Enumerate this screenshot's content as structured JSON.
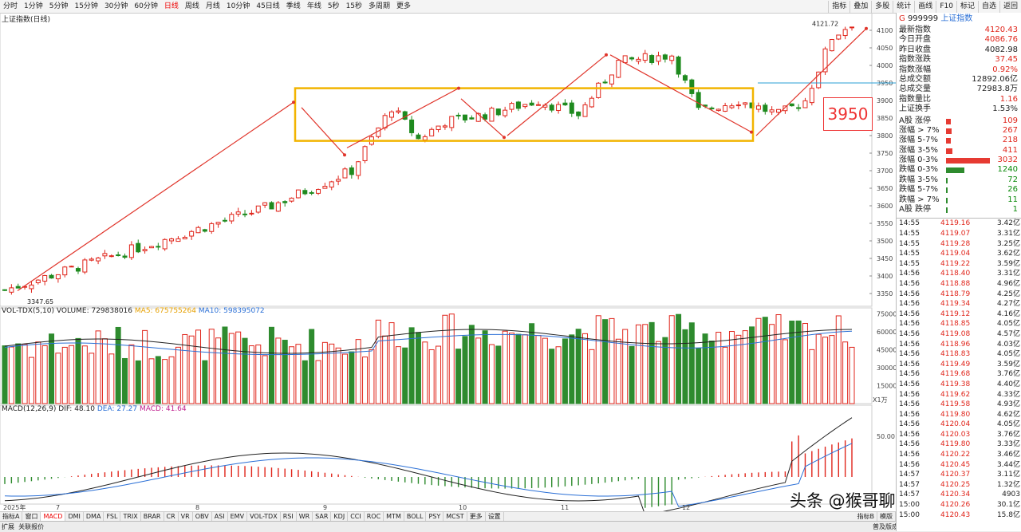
{
  "toolbar": {
    "periods": [
      "分时",
      "1分钟",
      "5分钟",
      "15分钟",
      "30分钟",
      "60分钟",
      "日线",
      "周线",
      "月线",
      "10分钟",
      "45日线",
      "季线",
      "年线",
      "5秒",
      "15秒",
      "多周期",
      "更多"
    ],
    "active_period": "日线",
    "right_tools": [
      "指标",
      "叠加",
      "多股",
      "统计",
      "画线",
      "F10",
      "标记",
      "自选",
      "返回"
    ]
  },
  "price_pane": {
    "title": "上证指数(日线)",
    "high_label": "4121.72",
    "low_label": "3347.65",
    "annotation_box": "3950",
    "y_ticks": [
      "4100",
      "4050",
      "4000",
      "3950",
      "3900",
      "3850",
      "3800",
      "3750",
      "3700",
      "3650",
      "3600",
      "3550",
      "3500",
      "3450",
      "3400",
      "3350"
    ]
  },
  "volume_pane": {
    "title": "VOL-TDX(5,10)",
    "volume": "VOLUME: 729838016",
    "ma5": "MA5: 675755264",
    "ma10": "MA10: 598395072",
    "y_ticks": [
      "75000",
      "60000",
      "45000",
      "30000",
      "15000"
    ],
    "unit": "X1万"
  },
  "macd_pane": {
    "title": "MACD(12,26,9)",
    "dif": "DIF: 48.10",
    "dea": "DEA: 27.27",
    "macd": "MACD: 41.64",
    "y_tick": "50.00"
  },
  "x_axis": {
    "labels": [
      "2025年",
      "7",
      "8",
      "9",
      "10",
      "11",
      "12"
    ]
  },
  "bottom_tabs": {
    "items": [
      "指标A",
      "窗口",
      "MACD",
      "DMI",
      "DMA",
      "FSL",
      "TRIX",
      "BRAR",
      "CR",
      "VR",
      "OBV",
      "ASI",
      "EMV",
      "VOL-TDX",
      "RSI",
      "WR",
      "SAR",
      "KDJ",
      "CCI",
      "ROC",
      "MTM",
      "BOLL",
      "PSY",
      "MCST",
      "更多",
      "设置"
    ],
    "active": "MACD",
    "right": [
      "指标B",
      "模版"
    ]
  },
  "status_bar": {
    "left": [
      "扩展",
      "关联报价"
    ],
    "right": [
      "普及版成交明细说明",
      "笔",
      "价",
      "细",
      "势",
      "联",
      "主",
      "筹",
      "逆"
    ]
  },
  "panel": {
    "code": "999999",
    "name": "上证指数",
    "badge": "G",
    "stats": [
      {
        "label": "最新指数",
        "value": "4120.43",
        "color": "red"
      },
      {
        "label": "今日开盘",
        "value": "4086.76",
        "color": "red"
      },
      {
        "label": "昨日收盘",
        "value": "4082.98",
        "color": "black"
      },
      {
        "label": "指数涨跌",
        "value": "37.45",
        "color": "red"
      },
      {
        "label": "指数涨幅",
        "value": "0.92%",
        "color": "red"
      },
      {
        "label": "总成交额",
        "value": "12892.06亿",
        "color": "black"
      },
      {
        "label": "总成交量",
        "value": "72983.8万",
        "color": "black"
      },
      {
        "label": "指数量比",
        "value": "1.16",
        "color": "red"
      },
      {
        "label": "上证换手",
        "value": "1.53%",
        "color": "black"
      }
    ],
    "breadth": [
      {
        "label": "A股 涨停",
        "value": "109",
        "color": "red",
        "bar": 0.1
      },
      {
        "label": "涨幅 > 7%",
        "value": "267",
        "color": "red",
        "bar": 0.12
      },
      {
        "label": "涨幅 5-7%",
        "value": "218",
        "color": "red",
        "bar": 0.1
      },
      {
        "label": "涨幅 3-5%",
        "value": "411",
        "color": "red",
        "bar": 0.14
      },
      {
        "label": "涨幅 0-3%",
        "value": "3032",
        "color": "red",
        "bar": 1.0
      },
      {
        "label": "跌幅 0-3%",
        "value": "1240",
        "color": "green",
        "bar": 0.42
      },
      {
        "label": "跌幅 3-5%",
        "value": "72",
        "color": "green",
        "bar": 0.02
      },
      {
        "label": "跌幅 5-7%",
        "value": "26",
        "color": "green",
        "bar": 0.01
      },
      {
        "label": "跌幅 > 7%",
        "value": "11",
        "color": "green",
        "bar": 0.01
      },
      {
        "label": "A股 跌停",
        "value": "1",
        "color": "green",
        "bar": 0.005
      }
    ],
    "ticks": [
      {
        "time": "14:55",
        "price": "4119.16",
        "vol": "3.42亿"
      },
      {
        "time": "14:55",
        "price": "4119.07",
        "vol": "3.31亿"
      },
      {
        "time": "14:55",
        "price": "4119.28",
        "vol": "3.25亿"
      },
      {
        "time": "14:55",
        "price": "4119.04",
        "vol": "3.62亿"
      },
      {
        "time": "14:55",
        "price": "4119.22",
        "vol": "3.59亿"
      },
      {
        "time": "14:56",
        "price": "4118.40",
        "vol": "3.31亿"
      },
      {
        "time": "14:56",
        "price": "4118.88",
        "vol": "4.96亿"
      },
      {
        "time": "14:56",
        "price": "4118.79",
        "vol": "4.25亿"
      },
      {
        "time": "14:56",
        "price": "4119.34",
        "vol": "4.27亿"
      },
      {
        "time": "14:56",
        "price": "4119.12",
        "vol": "4.16亿"
      },
      {
        "time": "14:56",
        "price": "4118.85",
        "vol": "4.05亿"
      },
      {
        "time": "14:56",
        "price": "4119.08",
        "vol": "4.57亿"
      },
      {
        "time": "14:56",
        "price": "4118.96",
        "vol": "4.03亿"
      },
      {
        "time": "14:56",
        "price": "4118.83",
        "vol": "4.05亿"
      },
      {
        "time": "14:56",
        "price": "4119.49",
        "vol": "3.59亿"
      },
      {
        "time": "14:56",
        "price": "4119.68",
        "vol": "3.76亿"
      },
      {
        "time": "14:56",
        "price": "4119.38",
        "vol": "4.40亿"
      },
      {
        "time": "14:56",
        "price": "4119.62",
        "vol": "4.33亿"
      },
      {
        "time": "14:56",
        "price": "4119.58",
        "vol": "4.93亿"
      },
      {
        "time": "14:56",
        "price": "4119.80",
        "vol": "4.62亿"
      },
      {
        "time": "14:56",
        "price": "4120.04",
        "vol": "4.05亿"
      },
      {
        "time": "14:56",
        "price": "4120.03",
        "vol": "3.76亿"
      },
      {
        "time": "14:56",
        "price": "4119.80",
        "vol": "3.33亿"
      },
      {
        "time": "14:56",
        "price": "4120.22",
        "vol": "3.46亿"
      },
      {
        "time": "14:56",
        "price": "4120.45",
        "vol": "3.44亿"
      },
      {
        "time": "14:57",
        "price": "4120.37",
        "vol": "3.11亿"
      },
      {
        "time": "14:57",
        "price": "4120.25",
        "vol": "1.32亿"
      },
      {
        "time": "14:57",
        "price": "4120.34",
        "vol": "4903"
      },
      {
        "time": "15:00",
        "price": "4120.26",
        "vol": "30.1亿"
      },
      {
        "time": "15:00",
        "price": "4120.43",
        "vol": "15.8亿"
      }
    ]
  },
  "watermark": "头条 @猴哥聊缠论"
}
